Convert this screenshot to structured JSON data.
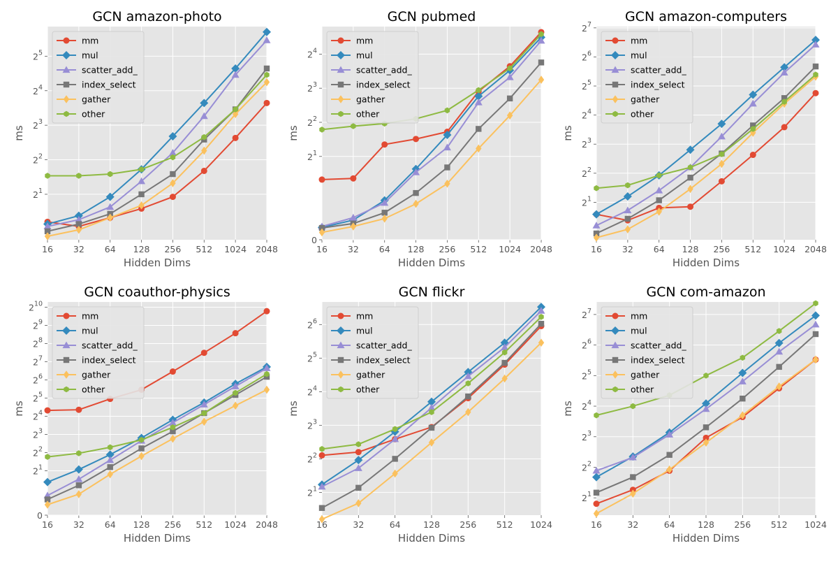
{
  "colors": {
    "mm": "#E24A33",
    "mul": "#348ABD",
    "scatter_add_": "#988ED5",
    "index_select": "#777777",
    "gather": "#FBC15E",
    "other": "#8EBA42",
    "axes_bg": "#E5E5E5",
    "grid": "#FFFFFF"
  },
  "chart_data": [
    {
      "type": "line",
      "title": "GCN amazon-photo",
      "xlabel": "Hidden Dims",
      "ylabel": "ms",
      "yscale": "symlog-base2",
      "x": [
        16,
        32,
        64,
        128,
        256,
        512,
        1024,
        2048
      ],
      "xticks": [
        "16",
        "32",
        "64",
        "128",
        "256",
        "512",
        "1024",
        "2048"
      ],
      "yticks": [
        {
          "base": "2",
          "exp": "1",
          "value": 2
        },
        {
          "base": "2",
          "exp": "2",
          "value": 4
        },
        {
          "base": "2",
          "exp": "3",
          "value": 8
        },
        {
          "base": "2",
          "exp": "4",
          "value": 16
        },
        {
          "base": "2",
          "exp": "5",
          "value": 32
        }
      ],
      "ylim": [
        0.78,
        58
      ],
      "legend": "upper left",
      "series": [
        {
          "name": "mm",
          "key": "mm",
          "marker": "circle",
          "values": [
            1.15,
            1.05,
            1.25,
            1.5,
            1.9,
            3.2,
            6.2,
            12.5
          ]
        },
        {
          "name": "mul",
          "key": "mul",
          "marker": "diamond",
          "values": [
            1.1,
            1.3,
            1.9,
            3.3,
            6.4,
            12.5,
            25,
            52
          ]
        },
        {
          "name": "scatter_add_",
          "key": "scatter_add_",
          "marker": "triangle",
          "values": [
            1.05,
            1.2,
            1.55,
            2.6,
            4.6,
            9.6,
            22,
            44
          ]
        },
        {
          "name": "index_select",
          "key": "index_select",
          "marker": "square",
          "values": [
            0.95,
            1.1,
            1.35,
            2.0,
            3.0,
            6.0,
            11,
            25
          ]
        },
        {
          "name": "gather",
          "key": "gather",
          "marker": "diamond-thin",
          "values": [
            0.85,
            0.98,
            1.25,
            1.6,
            2.5,
            4.8,
            10,
            19
          ]
        },
        {
          "name": "other",
          "key": "other",
          "marker": "hexagon",
          "values": [
            2.9,
            2.9,
            3.0,
            3.3,
            4.2,
            6.3,
            11,
            22
          ]
        }
      ]
    },
    {
      "type": "line",
      "title": "GCN pubmed",
      "xlabel": "Hidden Dims",
      "ylabel": "ms",
      "yscale": "symlog-base2",
      "x": [
        16,
        32,
        64,
        128,
        256,
        512,
        1024,
        2048
      ],
      "xticks": [
        "16",
        "32",
        "64",
        "128",
        "256",
        "512",
        "1024",
        "2048"
      ],
      "yticks": [
        {
          "base": "0",
          "exp": "",
          "value": 0
        },
        {
          "base": "2",
          "exp": "1",
          "value": 2
        },
        {
          "base": "2",
          "exp": "2",
          "value": 4
        },
        {
          "base": "2",
          "exp": "3",
          "value": 8
        },
        {
          "base": "2",
          "exp": "4",
          "value": 16
        }
      ],
      "ylim": [
        0,
        28
      ],
      "legend": "upper left",
      "series": [
        {
          "name": "mm",
          "key": "mm",
          "marker": "circle",
          "values": [
            1.25,
            1.28,
            2.55,
            2.85,
            3.3,
            7.5,
            12.5,
            25
          ]
        },
        {
          "name": "mul",
          "key": "mul",
          "marker": "diamond",
          "values": [
            0.25,
            0.4,
            0.8,
            1.55,
            3.1,
            6.8,
            11.5,
            22.5
          ]
        },
        {
          "name": "scatter_add_",
          "key": "scatter_add_",
          "marker": "triangle",
          "values": [
            0.27,
            0.45,
            0.75,
            1.45,
            2.4,
            6.0,
            10.0,
            21
          ]
        },
        {
          "name": "index_select",
          "key": "index_select",
          "marker": "square",
          "values": [
            0.24,
            0.33,
            0.55,
            0.95,
            1.6,
            3.5,
            6.5,
            13.5
          ]
        },
        {
          "name": "gather",
          "key": "gather",
          "marker": "diamond-thin",
          "values": [
            0.15,
            0.27,
            0.43,
            0.73,
            1.15,
            2.35,
            4.6,
            9.5
          ]
        },
        {
          "name": "other",
          "key": "other",
          "marker": "hexagon",
          "values": [
            3.45,
            3.7,
            3.9,
            4.3,
            5.1,
            7.7,
            12,
            24
          ]
        }
      ]
    },
    {
      "type": "line",
      "title": "GCN amazon-computers",
      "xlabel": "Hidden Dims",
      "ylabel": "ms",
      "yscale": "symlog-base2",
      "x": [
        16,
        32,
        64,
        128,
        256,
        512,
        1024,
        2048
      ],
      "xticks": [
        "16",
        "32",
        "64",
        "128",
        "256",
        "512",
        "1024",
        "2048"
      ],
      "yticks": [
        {
          "base": "2",
          "exp": "1",
          "value": 2
        },
        {
          "base": "2",
          "exp": "2",
          "value": 4
        },
        {
          "base": "2",
          "exp": "3",
          "value": 8
        },
        {
          "base": "2",
          "exp": "4",
          "value": 16
        },
        {
          "base": "2",
          "exp": "5",
          "value": 32
        },
        {
          "base": "2",
          "exp": "6",
          "value": 64
        },
        {
          "base": "2",
          "exp": "7",
          "value": 128
        }
      ],
      "ylim": [
        0.8,
        132
      ],
      "legend": "upper left",
      "series": [
        {
          "name": "mm",
          "key": "mm",
          "marker": "circle",
          "values": [
            1.5,
            1.3,
            1.75,
            1.8,
            3.3,
            6.2,
            12,
            27
          ]
        },
        {
          "name": "mul",
          "key": "mul",
          "marker": "diamond",
          "values": [
            1.5,
            2.3,
            3.8,
            7.0,
            13,
            26,
            50,
            96
          ]
        },
        {
          "name": "scatter_add_",
          "key": "scatter_add_",
          "marker": "triangle",
          "values": [
            1.15,
            1.65,
            2.65,
            4.6,
            9.6,
            21,
            44,
            86
          ]
        },
        {
          "name": "index_select",
          "key": "index_select",
          "marker": "square",
          "values": [
            0.95,
            1.35,
            2.1,
            3.6,
            6.4,
            12.5,
            24,
            51
          ]
        },
        {
          "name": "gather",
          "key": "gather",
          "marker": "diamond-thin",
          "values": [
            0.85,
            1.05,
            1.6,
            2.75,
            5.0,
            10.5,
            21,
            40
          ]
        },
        {
          "name": "other",
          "key": "other",
          "marker": "hexagon",
          "values": [
            2.8,
            3.0,
            3.8,
            4.6,
            6.3,
            11.5,
            22,
            42
          ]
        }
      ]
    },
    {
      "type": "line",
      "title": "GCN coauthor-physics",
      "xlabel": "Hidden Dims",
      "ylabel": "ms",
      "yscale": "symlog-base2",
      "x": [
        16,
        32,
        64,
        128,
        256,
        512,
        1024,
        2048
      ],
      "xticks": [
        "16",
        "32",
        "64",
        "128",
        "256",
        "512",
        "1024",
        "2048"
      ],
      "yticks": [
        {
          "base": "0",
          "exp": "",
          "value": 0
        },
        {
          "base": "2",
          "exp": "1",
          "value": 2
        },
        {
          "base": "2",
          "exp": "2",
          "value": 4
        },
        {
          "base": "2",
          "exp": "3",
          "value": 8
        },
        {
          "base": "2",
          "exp": "4",
          "value": 16
        },
        {
          "base": "2",
          "exp": "5",
          "value": 32
        },
        {
          "base": "2",
          "exp": "6",
          "value": 64
        },
        {
          "base": "2",
          "exp": "7",
          "value": 128
        },
        {
          "base": "2",
          "exp": "8",
          "value": 256
        },
        {
          "base": "2",
          "exp": "9",
          "value": 512
        },
        {
          "base": "2",
          "exp": "10",
          "value": 1024
        }
      ],
      "ylim": [
        0,
        1250
      ],
      "legend": "upper left",
      "series": [
        {
          "name": "mm",
          "key": "mm",
          "marker": "circle",
          "values": [
            20,
            20.5,
            31,
            44,
            88,
            180,
            380,
            880
          ]
        },
        {
          "name": "mul",
          "key": "mul",
          "marker": "diamond",
          "values": [
            1.3,
            2.1,
            3.7,
            7.0,
            14,
            27,
            55,
            105
          ]
        },
        {
          "name": "scatter_add_",
          "key": "scatter_add_",
          "marker": "triangle",
          "values": [
            0.75,
            1.45,
            3.0,
            6.3,
            12.5,
            25,
            50,
            100
          ]
        },
        {
          "name": "index_select",
          "key": "index_select",
          "marker": "square",
          "values": [
            0.6,
            1.15,
            2.3,
            4.7,
            9.0,
            18,
            36,
            72
          ]
        },
        {
          "name": "gather",
          "key": "gather",
          "marker": "diamond-thin",
          "values": [
            0.4,
            0.8,
            1.75,
            3.5,
            6.8,
            13,
            24,
            44
          ]
        },
        {
          "name": "other",
          "key": "other",
          "marker": "hexagon",
          "values": [
            3.4,
            3.9,
            4.9,
            6.5,
            10.5,
            18,
            39,
            80
          ]
        }
      ]
    },
    {
      "type": "line",
      "title": "GCN flickr",
      "xlabel": "Hidden Dims",
      "ylabel": "ms",
      "yscale": "symlog-base2",
      "x": [
        16,
        32,
        64,
        128,
        256,
        512,
        1024
      ],
      "xticks": [
        "16",
        "32",
        "64",
        "128",
        "256",
        "512",
        "1024"
      ],
      "yticks": [
        {
          "base": "2",
          "exp": "1",
          "value": 2
        },
        {
          "base": "2",
          "exp": "2",
          "value": 4
        },
        {
          "base": "2",
          "exp": "3",
          "value": 8
        },
        {
          "base": "2",
          "exp": "4",
          "value": 16
        },
        {
          "base": "2",
          "exp": "5",
          "value": 32
        },
        {
          "base": "2",
          "exp": "6",
          "value": 64
        }
      ],
      "ylim": [
        1.25,
        102
      ],
      "legend": "upper left",
      "series": [
        {
          "name": "mm",
          "key": "mm",
          "marker": "circle",
          "values": [
            4.3,
            4.6,
            6.0,
            7.7,
            14,
            28,
            62
          ]
        },
        {
          "name": "mul",
          "key": "mul",
          "marker": "diamond",
          "values": [
            2.35,
            3.9,
            7.0,
            13,
            24,
            44,
            92
          ]
        },
        {
          "name": "scatter_add_",
          "key": "scatter_add_",
          "marker": "triangle",
          "values": [
            2.25,
            3.3,
            6.0,
            11.5,
            22,
            40,
            85
          ]
        },
        {
          "name": "index_select",
          "key": "index_select",
          "marker": "square",
          "values": [
            1.45,
            2.2,
            4.0,
            7.6,
            14.5,
            29,
            65
          ]
        },
        {
          "name": "gather",
          "key": "gather",
          "marker": "diamond-thin",
          "values": [
            1.15,
            1.6,
            2.95,
            5.6,
            10.5,
            21,
            44
          ]
        },
        {
          "name": "other",
          "key": "other",
          "marker": "hexagon",
          "values": [
            4.9,
            5.4,
            7.4,
            10.5,
            19,
            36,
            75
          ]
        }
      ]
    },
    {
      "type": "line",
      "title": "GCN com-amazon",
      "xlabel": "Hidden Dims",
      "ylabel": "ms",
      "yscale": "symlog-base2",
      "x": [
        16,
        32,
        64,
        128,
        256,
        512,
        1024
      ],
      "xticks": [
        "16",
        "32",
        "64",
        "128",
        "256",
        "512",
        "1024"
      ],
      "yticks": [
        {
          "base": "2",
          "exp": "1",
          "value": 2
        },
        {
          "base": "2",
          "exp": "2",
          "value": 4
        },
        {
          "base": "2",
          "exp": "3",
          "value": 8
        },
        {
          "base": "2",
          "exp": "4",
          "value": 16
        },
        {
          "base": "2",
          "exp": "5",
          "value": 32
        },
        {
          "base": "2",
          "exp": "6",
          "value": 64
        },
        {
          "base": "2",
          "exp": "7",
          "value": 128
        }
      ],
      "ylim": [
        1.35,
        170
      ],
      "legend": "upper left",
      "series": [
        {
          "name": "mm",
          "key": "mm",
          "marker": "circle",
          "values": [
            1.75,
            2.4,
            3.7,
            7.8,
            12.5,
            24,
            46
          ]
        },
        {
          "name": "mul",
          "key": "mul",
          "marker": "diamond",
          "values": [
            3.2,
            5.1,
            8.8,
            17,
            34,
            67,
            125
          ]
        },
        {
          "name": "scatter_add_",
          "key": "scatter_add_",
          "marker": "triangle",
          "values": [
            3.7,
            5.0,
            8.4,
            15,
            28,
            55,
            102
          ]
        },
        {
          "name": "index_select",
          "key": "index_select",
          "marker": "square",
          "values": [
            2.25,
            3.2,
            5.3,
            9.9,
            19,
            39,
            82
          ]
        },
        {
          "name": "gather",
          "key": "gather",
          "marker": "diamond-thin",
          "values": [
            1.4,
            2.2,
            3.8,
            7.0,
            13,
            25,
            46
          ]
        },
        {
          "name": "other",
          "key": "other",
          "marker": "hexagon",
          "values": [
            13,
            16,
            20.5,
            32,
            48,
            88,
            165
          ]
        }
      ]
    }
  ]
}
